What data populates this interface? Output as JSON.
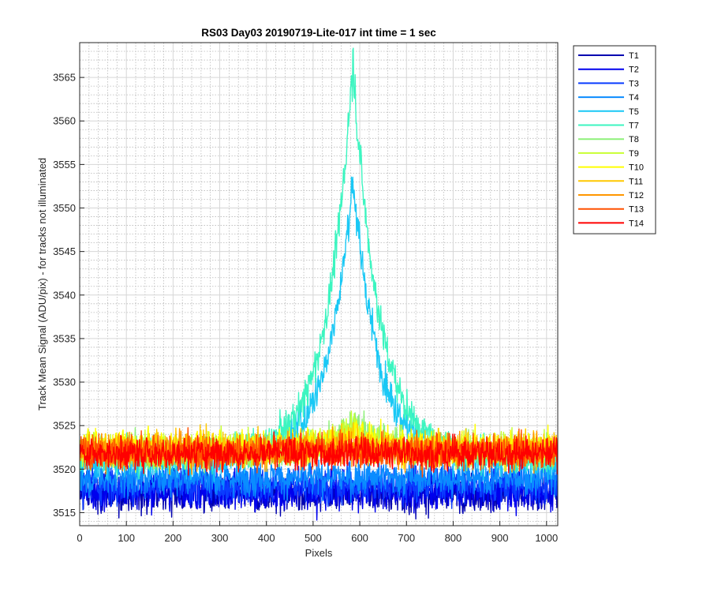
{
  "chart_data": {
    "type": "line",
    "title": "RS03 Day03 20190719-Lite-017 int time = 1 sec",
    "xlabel": "Pixels",
    "ylabel": "Track Mean Signal (ADU/pix) - for tracks not illuminated",
    "xlim": [
      0,
      1024
    ],
    "ylim": [
      3513.5,
      3569
    ],
    "xticks": [
      0,
      100,
      200,
      300,
      400,
      500,
      600,
      700,
      800,
      900,
      1000
    ],
    "yticks": [
      3515,
      3520,
      3525,
      3530,
      3535,
      3540,
      3545,
      3550,
      3555,
      3560,
      3565
    ],
    "grid": true,
    "minor_grid": true,
    "legend_position": "outside-right",
    "x_points": 1024,
    "series": [
      {
        "name": "T1",
        "color": "#0000b0",
        "baseline": 3517.2,
        "noise": 1.6,
        "peak": 0
      },
      {
        "name": "T2",
        "color": "#0000ee",
        "baseline": 3517.5,
        "noise": 1.6,
        "peak": 0
      },
      {
        "name": "T3",
        "color": "#0a3cff",
        "baseline": 3518.2,
        "noise": 1.5,
        "peak": 0
      },
      {
        "name": "T4",
        "color": "#0a8cff",
        "baseline": 3519.0,
        "noise": 1.5,
        "peak": 0
      },
      {
        "name": "T5",
        "color": "#19c8f5",
        "baseline": 3521.0,
        "noise": 1.4,
        "peak": 32.5
      },
      {
        "name": "T7",
        "color": "#3cf5c0",
        "baseline": 3521.5,
        "noise": 1.4,
        "peak": 45.5
      },
      {
        "name": "T8",
        "color": "#8ef07a",
        "baseline": 3522.0,
        "noise": 1.4,
        "peak": 3.5
      },
      {
        "name": "T9",
        "color": "#c8ff32",
        "baseline": 3522.3,
        "noise": 1.4,
        "peak": 2.5
      },
      {
        "name": "T10",
        "color": "#ffff00",
        "baseline": 3522.5,
        "noise": 1.4,
        "peak": 1.5
      },
      {
        "name": "T11",
        "color": "#ffc800",
        "baseline": 3522.3,
        "noise": 1.4,
        "peak": 0.8
      },
      {
        "name": "T12",
        "color": "#ff9600",
        "baseline": 3522.0,
        "noise": 1.4,
        "peak": 0.5
      },
      {
        "name": "T13",
        "color": "#ff5000",
        "baseline": 3522.0,
        "noise": 1.4,
        "peak": 0.4
      },
      {
        "name": "T14",
        "color": "#ff0000",
        "baseline": 3521.8,
        "noise": 1.3,
        "peak": 0.3
      }
    ],
    "peak_center": 585,
    "peak_width": 55
  }
}
